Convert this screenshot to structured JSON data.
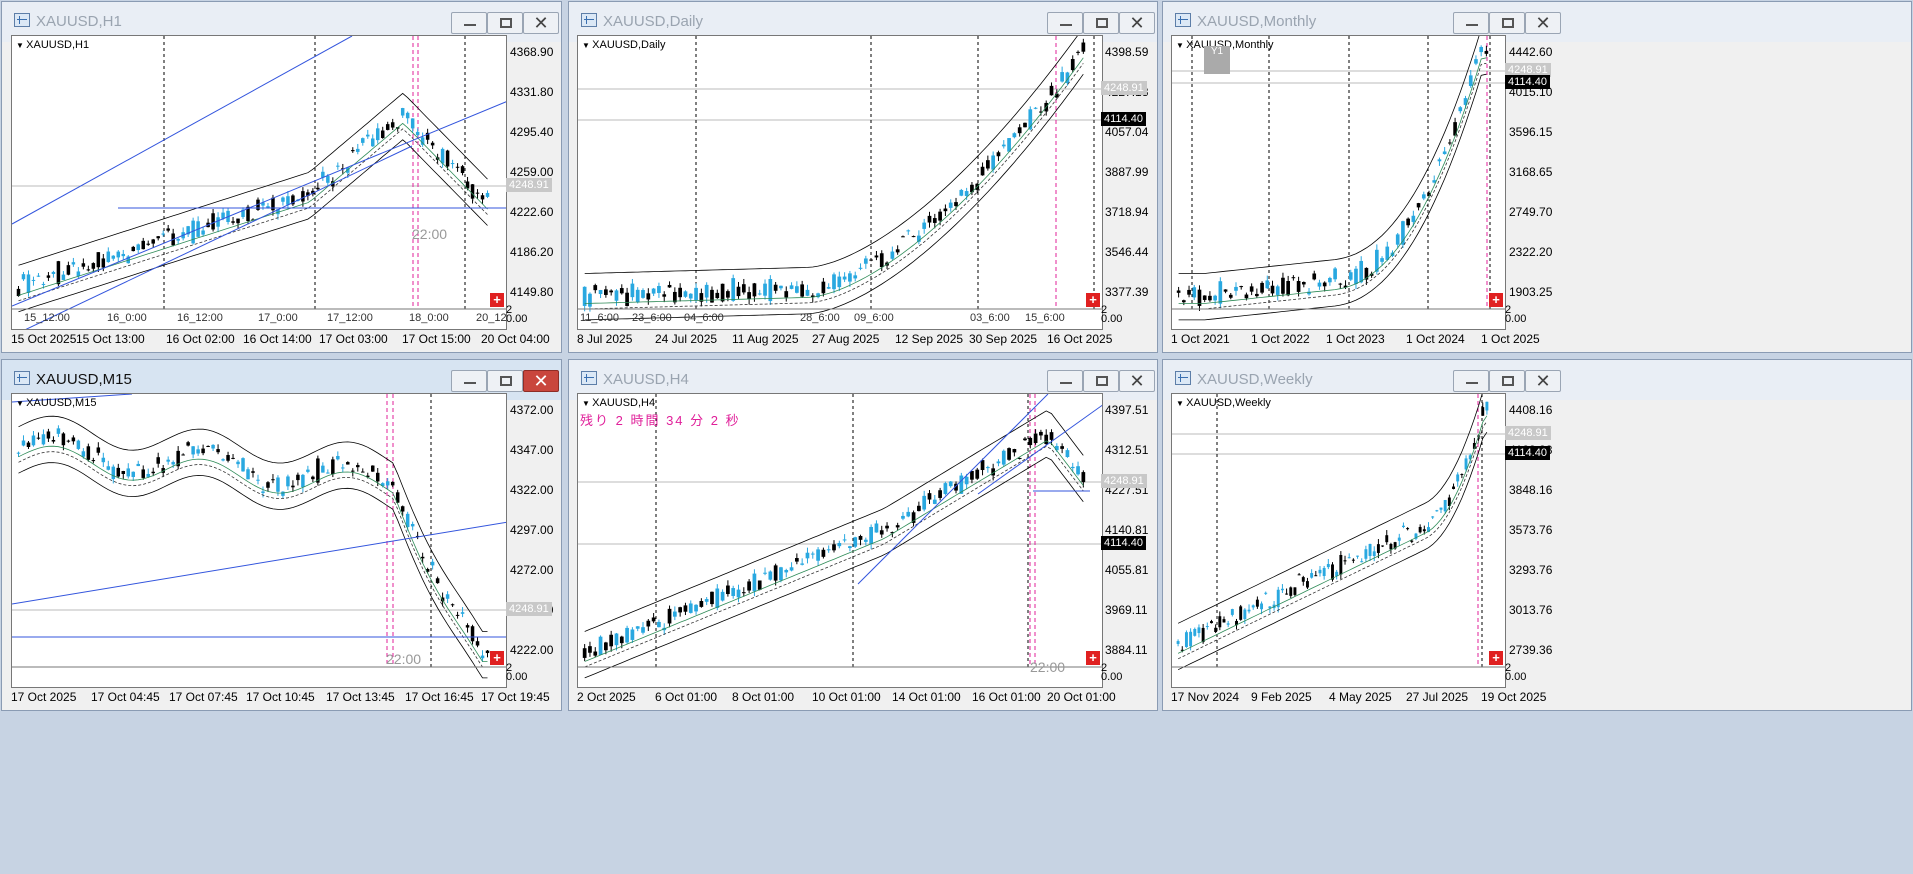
{
  "windows": [
    {
      "id": "h1",
      "title": "XAUUSD,H1",
      "label": "XAUUSD,H1",
      "active": false,
      "y_ticks": [
        "4368.90",
        "4331.80",
        "4295.40",
        "4259.00",
        "4222.60",
        "4186.20",
        "4149.80"
      ],
      "price_tags": [
        {
          "text": "4248.91",
          "style": "grey"
        }
      ],
      "inner_labels": [
        "15_12:00",
        "16_0:00",
        "16_12:00",
        "17_0:00",
        "17_12:00",
        "18_0:00",
        "20_12:2"
      ],
      "time_label": "22:00",
      "x_labels": [
        "15 Oct 2025",
        "15 Oct 13:00",
        "16 Oct 02:00",
        "16 Oct 14:00",
        "17 Oct 03:00",
        "17 Oct 15:00",
        "20 Oct 04:00"
      ]
    },
    {
      "id": "daily",
      "title": "XAUUSD,Daily",
      "label": "XAUUSD,Daily",
      "active": false,
      "y_ticks": [
        "4398.59",
        "4227.13",
        "4057.04",
        "3887.99",
        "3718.94",
        "3546.44",
        "3377.39"
      ],
      "price_tags": [
        {
          "text": "4248.91",
          "style": "grey"
        },
        {
          "text": "4114.40",
          "style": "black"
        }
      ],
      "inner_labels": [
        "11_6:00",
        "23_6:00",
        "04_6:00",
        "28_6:00",
        "09_6:00",
        "03_6:00",
        "15_6:00"
      ],
      "x_labels": [
        "8 Jul 2025",
        "24 Jul 2025",
        "11 Aug 2025",
        "27 Aug 2025",
        "12 Sep 2025",
        "30 Sep 2025",
        "16 Oct 2025"
      ]
    },
    {
      "id": "monthly",
      "title": "XAUUSD,Monthly",
      "label": "XAUUSD,Monthly",
      "active": false,
      "y_ticks": [
        "4442.60",
        "4015.10",
        "3596.15",
        "3168.65",
        "2749.70",
        "2322.20",
        "1903.25"
      ],
      "price_tags": [
        {
          "text": "4248.91",
          "style": "grey"
        },
        {
          "text": "4114.40",
          "style": "black"
        }
      ],
      "y1_label": "Y1",
      "x_labels": [
        "1 Oct 2021",
        "1 Oct 2022",
        "1 Oct 2023",
        "1 Oct 2024",
        "1 Oct 2025"
      ]
    },
    {
      "id": "m15",
      "title": "XAUUSD,M15",
      "label": "XAUUSD,M15",
      "active": true,
      "y_ticks": [
        "4372.00",
        "4347.00",
        "4322.00",
        "4297.00",
        "4272.00",
        "4247.00",
        "4222.00"
      ],
      "price_tags": [
        {
          "text": "4248.91",
          "style": "grey"
        }
      ],
      "time_label": "22:00",
      "x_labels": [
        "17 Oct 2025",
        "17 Oct 04:45",
        "17 Oct 07:45",
        "17 Oct 10:45",
        "17 Oct 13:45",
        "17 Oct 16:45",
        "17 Oct 19:45"
      ]
    },
    {
      "id": "h4",
      "title": "XAUUSD,H4",
      "label": "XAUUSD,H4",
      "active": false,
      "timer": "残り 2 時間 34 分 2 秒",
      "y_ticks": [
        "4397.51",
        "4312.51",
        "4227.51",
        "4140.81",
        "4055.81",
        "3969.11",
        "3884.11"
      ],
      "price_tags": [
        {
          "text": "4248.91",
          "style": "grey"
        },
        {
          "text": "4114.40",
          "style": "black"
        }
      ],
      "time_label": "22:00",
      "x_labels": [
        "2 Oct 2025",
        "6 Oct 01:00",
        "8 Oct 01:00",
        "10 Oct 01:00",
        "14 Oct 01:00",
        "16 Oct 01:00",
        "20 Oct 01:00"
      ]
    },
    {
      "id": "weekly",
      "title": "XAUUSD,Weekly",
      "label": "XAUUSD,Weekly",
      "active": false,
      "y_ticks": [
        "4408.16",
        "4128.28",
        "3848.16",
        "3573.76",
        "3293.76",
        "3013.76",
        "2739.36"
      ],
      "price_tags": [
        {
          "text": "4248.91",
          "style": "grey"
        },
        {
          "text": "4114.40",
          "style": "black"
        }
      ],
      "x_labels": [
        "17 Nov 2024",
        "9 Feb 2025",
        "4 May 2025",
        "27 Jul 2025",
        "19 Oct 2025"
      ]
    }
  ],
  "sub_axis_labels": [
    "2",
    "0.00"
  ],
  "trade_button_label": "+",
  "colors": {
    "bull": "#29a8e0",
    "bear": "#000000",
    "bands": "#000000",
    "ma": "#2e8b57",
    "trendline": "#3355dd",
    "period_sep": "#e0209a"
  }
}
